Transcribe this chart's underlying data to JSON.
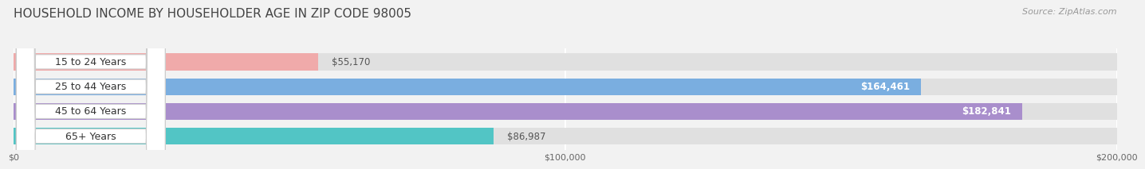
{
  "title": "HOUSEHOLD INCOME BY HOUSEHOLDER AGE IN ZIP CODE 98005",
  "source": "Source: ZipAtlas.com",
  "categories": [
    "15 to 24 Years",
    "25 to 44 Years",
    "45 to 64 Years",
    "65+ Years"
  ],
  "values": [
    55170,
    164461,
    182841,
    86987
  ],
  "bar_colors": [
    "#f0aaaa",
    "#7aaee0",
    "#a98ecc",
    "#52c5c5"
  ],
  "value_labels": [
    "$55,170",
    "$164,461",
    "$182,841",
    "$86,987"
  ],
  "value_inside": [
    false,
    true,
    true,
    false
  ],
  "xmax": 200000,
  "xticks": [
    0,
    100000,
    200000
  ],
  "xticklabels": [
    "$0",
    "$100,000",
    "$200,000"
  ],
  "background_color": "#f2f2f2",
  "bar_background_color": "#e0e0e0",
  "title_fontsize": 11,
  "source_fontsize": 8,
  "label_fontsize": 9,
  "value_fontsize": 8.5,
  "bar_height": 0.68
}
